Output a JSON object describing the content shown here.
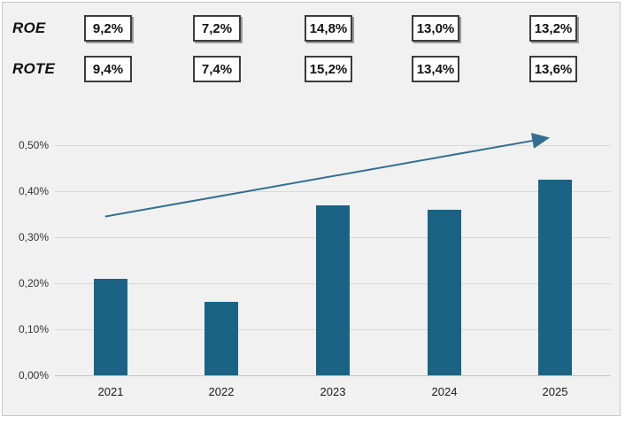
{
  "figure": {
    "metrics_table": {
      "rows": [
        {
          "label": "ROE",
          "values": [
            "9,2%",
            "7,2%",
            "14,8%",
            "13,0%",
            "13,2%"
          ]
        },
        {
          "label": "ROTE",
          "values": [
            "9,4%",
            "7,4%",
            "15,2%",
            "13,4%",
            "13,6%"
          ]
        }
      ]
    }
  },
  "chart_data": {
    "type": "bar",
    "categories": [
      "2021",
      "2022",
      "2023",
      "2024",
      "2025"
    ],
    "values": [
      0.21,
      0.16,
      0.37,
      0.36,
      0.425
    ],
    "unit": "%",
    "title": "",
    "xlabel": "",
    "ylabel": "",
    "ylim": [
      0,
      0.55
    ],
    "grid": true,
    "legend": false,
    "yticks": [
      {
        "value": 0.5,
        "label": "0,50%"
      },
      {
        "value": 0.4,
        "label": "0,40%"
      },
      {
        "value": 0.3,
        "label": "0,30%"
      },
      {
        "value": 0.2,
        "label": "0,20%"
      },
      {
        "value": 0.1,
        "label": "0,10%"
      },
      {
        "value": 0.0,
        "label": "0,00%"
      }
    ],
    "colors": {
      "bar": "#1b6385",
      "arrow": "#336f93",
      "gridline": "#d9d9d9",
      "axisline": "#c3c3c3"
    },
    "trend_arrow": {
      "from": {
        "category": "2021",
        "value": 0.345
      },
      "to": {
        "category": "2025",
        "value": 0.515
      }
    }
  }
}
